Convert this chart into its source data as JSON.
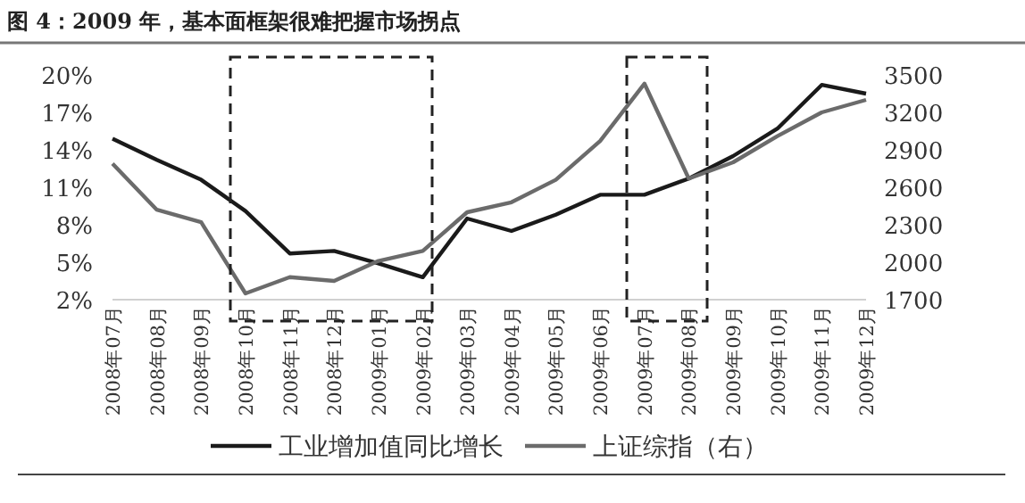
{
  "chart_data": {
    "type": "line",
    "title": "图 4：2009 年，基本面框架很难把握市场拐点",
    "categories": [
      "2008年07月",
      "2008年08月",
      "2008年09月",
      "2008年10月",
      "2008年11月",
      "2008年12月",
      "2009年01月",
      "2009年02月",
      "2009年03月",
      "2009年04月",
      "2009年05月",
      "2009年06月",
      "2009年07月",
      "2009年08月",
      "2009年09月",
      "2009年10月",
      "2009年11月",
      "2009年12月"
    ],
    "series": [
      {
        "name": "工业增加值同比增长",
        "color": "#1a1a1a",
        "values": [
          14.9,
          13.2,
          11.6,
          9.1,
          5.7,
          5.9,
          4.9,
          3.8,
          8.5,
          7.5,
          8.8,
          10.4,
          10.4,
          11.7,
          13.5,
          15.7,
          19.2,
          18.5
        ]
      },
      {
        "name": "上证综指（右）",
        "color": "#6b6b6b",
        "axis": "y2",
        "values": [
          2790,
          2420,
          2320,
          1750,
          1880,
          1850,
          2010,
          2090,
          2400,
          2480,
          2660,
          2970,
          3430,
          2670,
          2800,
          3010,
          3200,
          3300
        ]
      }
    ],
    "ylim": [
      2,
      20
    ],
    "yticks": [
      {
        "value": 2,
        "label": "2%"
      },
      {
        "value": 5,
        "label": "5%"
      },
      {
        "value": 8,
        "label": "8%"
      },
      {
        "value": 11,
        "label": "11%"
      },
      {
        "value": 14,
        "label": "14%"
      },
      {
        "value": 17,
        "label": "17%"
      },
      {
        "value": 20,
        "label": "20%"
      }
    ],
    "y2lim": [
      1700,
      3500
    ],
    "y2ticks": [
      1700,
      2000,
      2300,
      2600,
      2900,
      3200,
      3500
    ],
    "legend": "bottom",
    "grid": false
  }
}
